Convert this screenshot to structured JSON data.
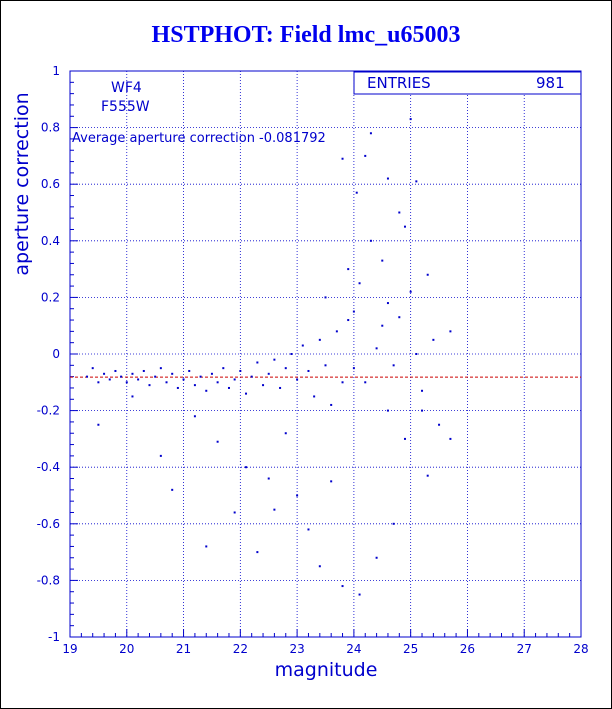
{
  "chart_data": {
    "type": "scatter",
    "title": "HSTPHOT: Field lmc_u65003",
    "xlabel": "magnitude",
    "ylabel": "aperture correction",
    "xlim": [
      19,
      28
    ],
    "ylim": [
      -1,
      1
    ],
    "x_ticks": [
      "19",
      "20",
      "21",
      "22",
      "23",
      "24",
      "25",
      "26",
      "27",
      "28"
    ],
    "y_ticks": [
      "-1",
      "-0.8",
      "-0.6",
      "-0.4",
      "-0.2",
      "0",
      "0.2",
      "0.4",
      "0.6",
      "0.8",
      "1"
    ],
    "grid": true,
    "annotations": {
      "chip": "WF4",
      "filter": "F555W",
      "average_text": "Average aperture correction -0.081792"
    },
    "stats_box": {
      "label": "ENTRIES",
      "value": "981"
    },
    "reference_line_y": -0.081792,
    "series": [
      {
        "points": [
          [
            19.3,
            -0.08
          ],
          [
            19.4,
            -0.05
          ],
          [
            19.5,
            -0.1
          ],
          [
            19.6,
            -0.07
          ],
          [
            19.7,
            -0.09
          ],
          [
            19.8,
            -0.06
          ],
          [
            19.9,
            -0.08
          ],
          [
            20.0,
            -0.1
          ],
          [
            20.1,
            -0.07
          ],
          [
            20.2,
            -0.09
          ],
          [
            20.3,
            -0.06
          ],
          [
            20.4,
            -0.11
          ],
          [
            20.5,
            -0.08
          ],
          [
            20.6,
            -0.05
          ],
          [
            20.7,
            -0.1
          ],
          [
            20.8,
            -0.07
          ],
          [
            20.9,
            -0.12
          ],
          [
            21.0,
            -0.09
          ],
          [
            21.1,
            -0.06
          ],
          [
            21.2,
            -0.11
          ],
          [
            21.3,
            -0.08
          ],
          [
            21.4,
            -0.13
          ],
          [
            21.5,
            -0.07
          ],
          [
            21.6,
            -0.1
          ],
          [
            21.7,
            -0.05
          ],
          [
            21.8,
            -0.12
          ],
          [
            21.9,
            -0.09
          ],
          [
            22.0,
            -0.06
          ],
          [
            22.1,
            -0.14
          ],
          [
            22.2,
            -0.08
          ],
          [
            22.3,
            -0.03
          ],
          [
            22.4,
            -0.11
          ],
          [
            22.5,
            -0.07
          ],
          [
            22.6,
            -0.02
          ],
          [
            22.7,
            -0.12
          ],
          [
            22.8,
            -0.05
          ],
          [
            22.9,
            0.0
          ],
          [
            23.0,
            -0.09
          ],
          [
            23.1,
            0.03
          ],
          [
            23.2,
            -0.06
          ],
          [
            23.3,
            -0.15
          ],
          [
            23.4,
            0.05
          ],
          [
            23.5,
            -0.04
          ],
          [
            23.6,
            -0.18
          ],
          [
            23.7,
            0.08
          ],
          [
            23.8,
            -0.1
          ],
          [
            23.9,
            0.12
          ],
          [
            24.0,
            -0.05
          ],
          [
            19.5,
            -0.25
          ],
          [
            20.1,
            -0.15
          ],
          [
            20.6,
            -0.36
          ],
          [
            20.8,
            -0.48
          ],
          [
            21.2,
            -0.22
          ],
          [
            21.4,
            -0.68
          ],
          [
            21.6,
            -0.31
          ],
          [
            21.9,
            -0.56
          ],
          [
            22.1,
            -0.4
          ],
          [
            22.3,
            -0.7
          ],
          [
            22.5,
            -0.44
          ],
          [
            22.6,
            -0.55
          ],
          [
            22.8,
            -0.28
          ],
          [
            23.0,
            -0.5
          ],
          [
            23.2,
            -0.62
          ],
          [
            23.4,
            -0.75
          ],
          [
            23.6,
            -0.45
          ],
          [
            23.8,
            -0.82
          ],
          [
            24.1,
            -0.85
          ],
          [
            24.4,
            -0.72
          ],
          [
            24.7,
            -0.6
          ],
          [
            24.9,
            -0.3
          ],
          [
            25.2,
            -0.2
          ],
          [
            25.5,
            -0.25
          ],
          [
            23.5,
            0.2
          ],
          [
            23.9,
            0.3
          ],
          [
            24.1,
            0.25
          ],
          [
            24.3,
            0.4
          ],
          [
            24.5,
            0.33
          ],
          [
            24.6,
            0.18
          ],
          [
            24.8,
            0.5
          ],
          [
            24.9,
            0.45
          ],
          [
            25.1,
            0.61
          ],
          [
            25.3,
            0.28
          ],
          [
            24.6,
            0.62
          ],
          [
            24.2,
            0.7
          ],
          [
            24.05,
            0.57
          ],
          [
            23.8,
            0.69
          ],
          [
            24.3,
            0.78
          ],
          [
            25.0,
            0.83
          ],
          [
            24.5,
            0.1
          ],
          [
            24.7,
            -0.04
          ],
          [
            25.0,
            0.22
          ],
          [
            25.2,
            -0.13
          ],
          [
            25.4,
            0.05
          ],
          [
            25.7,
            0.08
          ],
          [
            25.7,
            -0.3
          ],
          [
            25.3,
            -0.43
          ],
          [
            24.2,
            -0.1
          ],
          [
            24.4,
            0.02
          ],
          [
            24.6,
            -0.2
          ],
          [
            24.8,
            0.13
          ],
          [
            25.1,
            0.0
          ],
          [
            24.0,
            0.15
          ]
        ]
      }
    ]
  }
}
